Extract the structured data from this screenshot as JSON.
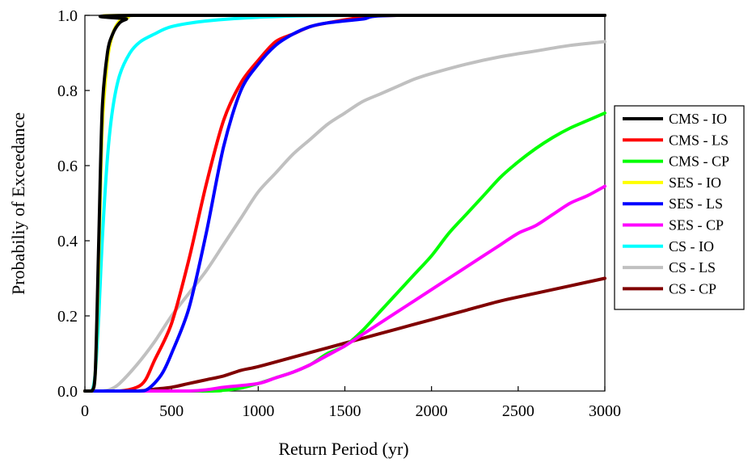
{
  "chart_data": {
    "type": "line",
    "title": "",
    "xlabel": "Return Period (yr)",
    "ylabel": "Probabiliy of Exceedance",
    "xlim": [
      0,
      3000
    ],
    "ylim": [
      0,
      1.0
    ],
    "x_ticks": [
      0,
      500,
      1000,
      1500,
      2000,
      2500,
      3000
    ],
    "y_ticks": [
      0.0,
      0.2,
      0.4,
      0.6,
      0.8,
      1.0
    ],
    "x_tick_labels": [
      "0",
      "500",
      "1000",
      "1500",
      "2000",
      "2500",
      "3000"
    ],
    "y_tick_labels": [
      "0.0",
      "0.2",
      "0.4",
      "0.6",
      "0.8",
      "1.0"
    ],
    "grid": false,
    "legend_position": "right",
    "series": [
      {
        "name": "CMS - IO",
        "color": "#000000",
        "points": [
          [
            0,
            0
          ],
          [
            40,
            0.0
          ],
          [
            60,
            0.05
          ],
          [
            80,
            0.4
          ],
          [
            100,
            0.75
          ],
          [
            130,
            0.9
          ],
          [
            160,
            0.95
          ],
          [
            200,
            0.98
          ],
          [
            240,
            0.99
          ],
          [
            280,
            1.0
          ],
          [
            3000,
            1.0
          ]
        ]
      },
      {
        "name": "CMS - LS",
        "color": "#ff0000",
        "points": [
          [
            0,
            0
          ],
          [
            200,
            0.0
          ],
          [
            300,
            0.01
          ],
          [
            350,
            0.03
          ],
          [
            400,
            0.08
          ],
          [
            500,
            0.18
          ],
          [
            600,
            0.35
          ],
          [
            700,
            0.55
          ],
          [
            800,
            0.72
          ],
          [
            900,
            0.82
          ],
          [
            1000,
            0.88
          ],
          [
            1100,
            0.93
          ],
          [
            1200,
            0.95
          ],
          [
            1300,
            0.97
          ],
          [
            1400,
            0.98
          ],
          [
            1600,
            0.995
          ],
          [
            1800,
            1.0
          ],
          [
            3000,
            1.0
          ]
        ]
      },
      {
        "name": "CMS - CP",
        "color": "#00ff00",
        "points": [
          [
            0,
            0
          ],
          [
            700,
            0.0
          ],
          [
            800,
            0.002
          ],
          [
            900,
            0.008
          ],
          [
            1000,
            0.02
          ],
          [
            1100,
            0.035
          ],
          [
            1200,
            0.05
          ],
          [
            1300,
            0.07
          ],
          [
            1400,
            0.1
          ],
          [
            1500,
            0.12
          ],
          [
            1600,
            0.16
          ],
          [
            1700,
            0.21
          ],
          [
            1800,
            0.26
          ],
          [
            1900,
            0.31
          ],
          [
            2000,
            0.36
          ],
          [
            2100,
            0.42
          ],
          [
            2200,
            0.47
          ],
          [
            2300,
            0.52
          ],
          [
            2400,
            0.57
          ],
          [
            2500,
            0.61
          ],
          [
            2600,
            0.645
          ],
          [
            2700,
            0.675
          ],
          [
            2800,
            0.7
          ],
          [
            2900,
            0.72
          ],
          [
            3000,
            0.74
          ]
        ]
      },
      {
        "name": "SES - IO",
        "color": "#ffff00",
        "points": [
          [
            0,
            0
          ],
          [
            40,
            0.0
          ],
          [
            60,
            0.05
          ],
          [
            80,
            0.35
          ],
          [
            100,
            0.7
          ],
          [
            130,
            0.88
          ],
          [
            160,
            0.95
          ],
          [
            200,
            0.985
          ],
          [
            250,
            0.995
          ],
          [
            300,
            1.0
          ],
          [
            3000,
            1.0
          ]
        ]
      },
      {
        "name": "SES - LS",
        "color": "#0000ff",
        "points": [
          [
            0,
            0
          ],
          [
            300,
            0.0
          ],
          [
            350,
            0.002
          ],
          [
            400,
            0.02
          ],
          [
            450,
            0.05
          ],
          [
            500,
            0.1
          ],
          [
            600,
            0.22
          ],
          [
            700,
            0.42
          ],
          [
            800,
            0.65
          ],
          [
            900,
            0.8
          ],
          [
            1000,
            0.87
          ],
          [
            1100,
            0.92
          ],
          [
            1200,
            0.95
          ],
          [
            1300,
            0.97
          ],
          [
            1400,
            0.98
          ],
          [
            1600,
            0.99
          ],
          [
            1800,
            1.0
          ],
          [
            3000,
            1.0
          ]
        ]
      },
      {
        "name": "SES - CP",
        "color": "#ff00ff",
        "points": [
          [
            0,
            0
          ],
          [
            600,
            0.0
          ],
          [
            800,
            0.01
          ],
          [
            1000,
            0.02
          ],
          [
            1100,
            0.035
          ],
          [
            1200,
            0.05
          ],
          [
            1300,
            0.07
          ],
          [
            1400,
            0.095
          ],
          [
            1500,
            0.12
          ],
          [
            1600,
            0.15
          ],
          [
            1700,
            0.18
          ],
          [
            1800,
            0.21
          ],
          [
            1900,
            0.24
          ],
          [
            2000,
            0.27
          ],
          [
            2100,
            0.3
          ],
          [
            2200,
            0.33
          ],
          [
            2300,
            0.36
          ],
          [
            2400,
            0.39
          ],
          [
            2500,
            0.42
          ],
          [
            2600,
            0.44
          ],
          [
            2700,
            0.47
          ],
          [
            2800,
            0.5
          ],
          [
            2900,
            0.52
          ],
          [
            3000,
            0.545
          ]
        ]
      },
      {
        "name": "CS - IO",
        "color": "#00ffff",
        "points": [
          [
            0,
            0
          ],
          [
            40,
            0.0
          ],
          [
            60,
            0.05
          ],
          [
            80,
            0.2
          ],
          [
            100,
            0.4
          ],
          [
            130,
            0.62
          ],
          [
            160,
            0.75
          ],
          [
            200,
            0.84
          ],
          [
            260,
            0.9
          ],
          [
            320,
            0.93
          ],
          [
            400,
            0.95
          ],
          [
            500,
            0.97
          ],
          [
            700,
            0.985
          ],
          [
            1000,
            0.995
          ],
          [
            1500,
            1.0
          ],
          [
            3000,
            1.0
          ]
        ]
      },
      {
        "name": "CS - LS",
        "color": "#c0c0c0",
        "points": [
          [
            0,
            0
          ],
          [
            100,
            0.0
          ],
          [
            150,
            0.005
          ],
          [
            200,
            0.02
          ],
          [
            300,
            0.07
          ],
          [
            400,
            0.13
          ],
          [
            500,
            0.2
          ],
          [
            600,
            0.26
          ],
          [
            700,
            0.32
          ],
          [
            800,
            0.39
          ],
          [
            900,
            0.46
          ],
          [
            1000,
            0.53
          ],
          [
            1100,
            0.58
          ],
          [
            1200,
            0.63
          ],
          [
            1300,
            0.67
          ],
          [
            1400,
            0.71
          ],
          [
            1500,
            0.74
          ],
          [
            1600,
            0.77
          ],
          [
            1700,
            0.79
          ],
          [
            1800,
            0.81
          ],
          [
            1900,
            0.83
          ],
          [
            2000,
            0.845
          ],
          [
            2200,
            0.87
          ],
          [
            2400,
            0.89
          ],
          [
            2600,
            0.905
          ],
          [
            2800,
            0.92
          ],
          [
            3000,
            0.93
          ]
        ]
      },
      {
        "name": "CS - CP",
        "color": "#800000",
        "points": [
          [
            0,
            0
          ],
          [
            300,
            0.0
          ],
          [
            400,
            0.005
          ],
          [
            500,
            0.01
          ],
          [
            600,
            0.02
          ],
          [
            700,
            0.03
          ],
          [
            800,
            0.04
          ],
          [
            900,
            0.055
          ],
          [
            1000,
            0.065
          ],
          [
            1200,
            0.09
          ],
          [
            1400,
            0.115
          ],
          [
            1600,
            0.14
          ],
          [
            1800,
            0.165
          ],
          [
            2000,
            0.19
          ],
          [
            2200,
            0.215
          ],
          [
            2400,
            0.24
          ],
          [
            2600,
            0.26
          ],
          [
            2800,
            0.28
          ],
          [
            3000,
            0.3
          ]
        ]
      }
    ]
  }
}
